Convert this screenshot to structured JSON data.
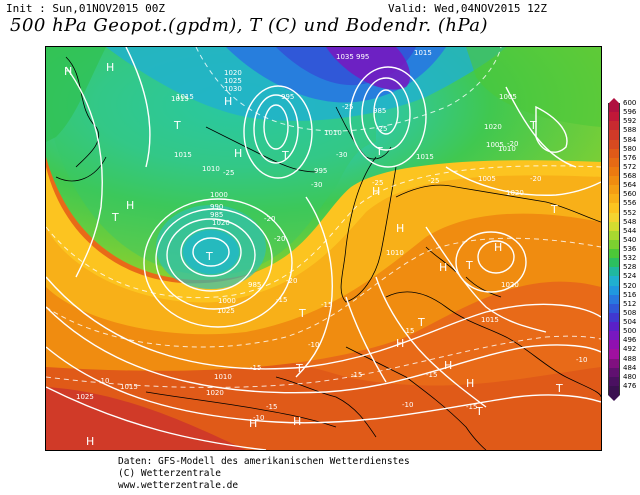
{
  "header": {
    "init": "Init : Sun,01NOV2015 00Z",
    "valid": "Valid: Wed,04NOV2015 12Z",
    "title": "500 hPa Geopot.(gpdm), T (C) und Bodendr. (hPa)"
  },
  "legend": {
    "values": [
      "600",
      "596",
      "592",
      "588",
      "584",
      "580",
      "576",
      "572",
      "568",
      "564",
      "560",
      "556",
      "552",
      "548",
      "544",
      "540",
      "536",
      "532",
      "528",
      "524",
      "520",
      "516",
      "512",
      "508",
      "504",
      "500",
      "496",
      "492",
      "488",
      "484",
      "480",
      "476"
    ],
    "colors": [
      "#b01040",
      "#c01838",
      "#c82a30",
      "#d03a28",
      "#d84a20",
      "#e05a18",
      "#e66a14",
      "#ec7a10",
      "#f08c10",
      "#f49e14",
      "#f8b018",
      "#fcc420",
      "#f4d430",
      "#d4dc30",
      "#a8d830",
      "#7cd030",
      "#4cc838",
      "#2cc060",
      "#20b8a0",
      "#20b0d0",
      "#2098e0",
      "#2878e0",
      "#3058d8",
      "#4038d0",
      "#5a20c8",
      "#7818c0",
      "#9010b0",
      "#a010a0",
      "#801080",
      "#601070",
      "#4a1060",
      "#3a1050"
    ]
  },
  "map": {
    "highs": [
      {
        "label": "H"
      },
      {
        "label": "H"
      },
      {
        "label": "H"
      },
      {
        "label": "H"
      },
      {
        "label": "H"
      },
      {
        "label": "H"
      },
      {
        "label": "H"
      },
      {
        "label": "H"
      },
      {
        "label": "H"
      },
      {
        "label": "H"
      },
      {
        "label": "H"
      },
      {
        "label": "H"
      },
      {
        "label": "H"
      },
      {
        "label": "H"
      },
      {
        "label": "H"
      }
    ],
    "lows": [
      {
        "label": "T"
      },
      {
        "label": "T"
      },
      {
        "label": "T"
      },
      {
        "label": "T"
      },
      {
        "label": "T"
      },
      {
        "label": "T"
      },
      {
        "label": "T"
      },
      {
        "label": "T"
      },
      {
        "label": "T"
      },
      {
        "label": "T"
      },
      {
        "label": "T"
      },
      {
        "label": "T"
      },
      {
        "label": "T"
      }
    ],
    "pressure_labels": [
      "1015",
      "1035",
      "995",
      "1015",
      "1020",
      "1025",
      "1030",
      "985",
      "1015",
      "1015",
      "1005",
      "1020",
      "1010",
      "1015",
      "1010",
      "1005",
      "1000",
      "990",
      "985",
      "1020",
      "985",
      "1000",
      "1025",
      "1010",
      "1015",
      "1020",
      "1025",
      "1020",
      "1010",
      "1015",
      "995",
      "1005",
      "1020",
      "995",
      "1010"
    ],
    "temperature_labels": [
      "-25",
      "-30",
      "-25",
      "-25",
      "-20",
      "-20",
      "-15",
      "-15",
      "-10",
      "-10",
      "-15",
      "-10",
      "-15",
      "-15",
      "-15",
      "-10",
      "-15",
      "-20",
      "-30",
      "-25",
      "-25",
      "-20",
      "-20",
      "-10",
      "-15"
    ]
  },
  "credits": {
    "line1": "Daten: GFS-Modell des amerikanischen Wetterdienstes",
    "line2": "(C) Wetterzentrale",
    "line3": "www.wetterzentrale.de"
  }
}
